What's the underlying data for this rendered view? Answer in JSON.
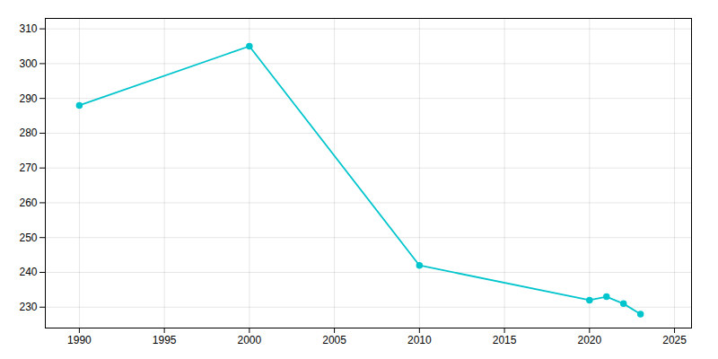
{
  "chart_data": {
    "type": "line",
    "x": [
      1990,
      2000,
      2010,
      2020,
      2021,
      2022,
      2023
    ],
    "values": [
      288,
      305,
      242,
      232,
      233,
      231,
      228
    ],
    "color": "#00C5CD",
    "marker": "circle",
    "xlim": [
      1988,
      2026
    ],
    "ylim": [
      224,
      313
    ],
    "xticks": [
      1990,
      1995,
      2000,
      2005,
      2010,
      2015,
      2020,
      2025
    ],
    "yticks": [
      230,
      240,
      250,
      260,
      270,
      280,
      290,
      300,
      310
    ],
    "grid": true
  }
}
